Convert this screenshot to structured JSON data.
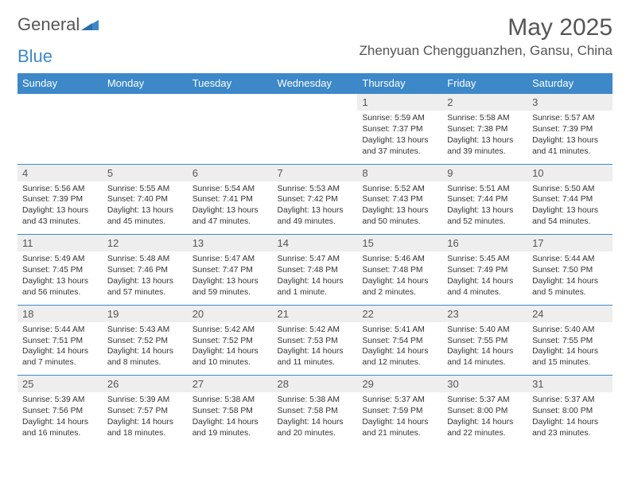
{
  "logo": {
    "text_a": "General",
    "text_b": "Blue"
  },
  "title": "May 2025",
  "location": "Zhenyuan Chengguanzhen, Gansu, China",
  "colors": {
    "header_bg": "#3c88c9",
    "header_text": "#ffffff",
    "daynum_bg": "#eeeeee",
    "text": "#333333",
    "title_text": "#555555",
    "rule": "#3c88c9",
    "background": "#ffffff"
  },
  "typography": {
    "title_fontsize": 30,
    "location_fontsize": 17,
    "header_fontsize": 13,
    "daynum_fontsize": 13,
    "body_fontsize": 10.3
  },
  "day_headers": [
    "Sunday",
    "Monday",
    "Tuesday",
    "Wednesday",
    "Thursday",
    "Friday",
    "Saturday"
  ],
  "weeks": [
    [
      {
        "n": "",
        "sr": "",
        "ss": "",
        "dl": ""
      },
      {
        "n": "",
        "sr": "",
        "ss": "",
        "dl": ""
      },
      {
        "n": "",
        "sr": "",
        "ss": "",
        "dl": ""
      },
      {
        "n": "",
        "sr": "",
        "ss": "",
        "dl": ""
      },
      {
        "n": "1",
        "sr": "Sunrise: 5:59 AM",
        "ss": "Sunset: 7:37 PM",
        "dl": "Daylight: 13 hours and 37 minutes."
      },
      {
        "n": "2",
        "sr": "Sunrise: 5:58 AM",
        "ss": "Sunset: 7:38 PM",
        "dl": "Daylight: 13 hours and 39 minutes."
      },
      {
        "n": "3",
        "sr": "Sunrise: 5:57 AM",
        "ss": "Sunset: 7:39 PM",
        "dl": "Daylight: 13 hours and 41 minutes."
      }
    ],
    [
      {
        "n": "4",
        "sr": "Sunrise: 5:56 AM",
        "ss": "Sunset: 7:39 PM",
        "dl": "Daylight: 13 hours and 43 minutes."
      },
      {
        "n": "5",
        "sr": "Sunrise: 5:55 AM",
        "ss": "Sunset: 7:40 PM",
        "dl": "Daylight: 13 hours and 45 minutes."
      },
      {
        "n": "6",
        "sr": "Sunrise: 5:54 AM",
        "ss": "Sunset: 7:41 PM",
        "dl": "Daylight: 13 hours and 47 minutes."
      },
      {
        "n": "7",
        "sr": "Sunrise: 5:53 AM",
        "ss": "Sunset: 7:42 PM",
        "dl": "Daylight: 13 hours and 49 minutes."
      },
      {
        "n": "8",
        "sr": "Sunrise: 5:52 AM",
        "ss": "Sunset: 7:43 PM",
        "dl": "Daylight: 13 hours and 50 minutes."
      },
      {
        "n": "9",
        "sr": "Sunrise: 5:51 AM",
        "ss": "Sunset: 7:44 PM",
        "dl": "Daylight: 13 hours and 52 minutes."
      },
      {
        "n": "10",
        "sr": "Sunrise: 5:50 AM",
        "ss": "Sunset: 7:44 PM",
        "dl": "Daylight: 13 hours and 54 minutes."
      }
    ],
    [
      {
        "n": "11",
        "sr": "Sunrise: 5:49 AM",
        "ss": "Sunset: 7:45 PM",
        "dl": "Daylight: 13 hours and 56 minutes."
      },
      {
        "n": "12",
        "sr": "Sunrise: 5:48 AM",
        "ss": "Sunset: 7:46 PM",
        "dl": "Daylight: 13 hours and 57 minutes."
      },
      {
        "n": "13",
        "sr": "Sunrise: 5:47 AM",
        "ss": "Sunset: 7:47 PM",
        "dl": "Daylight: 13 hours and 59 minutes."
      },
      {
        "n": "14",
        "sr": "Sunrise: 5:47 AM",
        "ss": "Sunset: 7:48 PM",
        "dl": "Daylight: 14 hours and 1 minute."
      },
      {
        "n": "15",
        "sr": "Sunrise: 5:46 AM",
        "ss": "Sunset: 7:48 PM",
        "dl": "Daylight: 14 hours and 2 minutes."
      },
      {
        "n": "16",
        "sr": "Sunrise: 5:45 AM",
        "ss": "Sunset: 7:49 PM",
        "dl": "Daylight: 14 hours and 4 minutes."
      },
      {
        "n": "17",
        "sr": "Sunrise: 5:44 AM",
        "ss": "Sunset: 7:50 PM",
        "dl": "Daylight: 14 hours and 5 minutes."
      }
    ],
    [
      {
        "n": "18",
        "sr": "Sunrise: 5:44 AM",
        "ss": "Sunset: 7:51 PM",
        "dl": "Daylight: 14 hours and 7 minutes."
      },
      {
        "n": "19",
        "sr": "Sunrise: 5:43 AM",
        "ss": "Sunset: 7:52 PM",
        "dl": "Daylight: 14 hours and 8 minutes."
      },
      {
        "n": "20",
        "sr": "Sunrise: 5:42 AM",
        "ss": "Sunset: 7:52 PM",
        "dl": "Daylight: 14 hours and 10 minutes."
      },
      {
        "n": "21",
        "sr": "Sunrise: 5:42 AM",
        "ss": "Sunset: 7:53 PM",
        "dl": "Daylight: 14 hours and 11 minutes."
      },
      {
        "n": "22",
        "sr": "Sunrise: 5:41 AM",
        "ss": "Sunset: 7:54 PM",
        "dl": "Daylight: 14 hours and 12 minutes."
      },
      {
        "n": "23",
        "sr": "Sunrise: 5:40 AM",
        "ss": "Sunset: 7:55 PM",
        "dl": "Daylight: 14 hours and 14 minutes."
      },
      {
        "n": "24",
        "sr": "Sunrise: 5:40 AM",
        "ss": "Sunset: 7:55 PM",
        "dl": "Daylight: 14 hours and 15 minutes."
      }
    ],
    [
      {
        "n": "25",
        "sr": "Sunrise: 5:39 AM",
        "ss": "Sunset: 7:56 PM",
        "dl": "Daylight: 14 hours and 16 minutes."
      },
      {
        "n": "26",
        "sr": "Sunrise: 5:39 AM",
        "ss": "Sunset: 7:57 PM",
        "dl": "Daylight: 14 hours and 18 minutes."
      },
      {
        "n": "27",
        "sr": "Sunrise: 5:38 AM",
        "ss": "Sunset: 7:58 PM",
        "dl": "Daylight: 14 hours and 19 minutes."
      },
      {
        "n": "28",
        "sr": "Sunrise: 5:38 AM",
        "ss": "Sunset: 7:58 PM",
        "dl": "Daylight: 14 hours and 20 minutes."
      },
      {
        "n": "29",
        "sr": "Sunrise: 5:37 AM",
        "ss": "Sunset: 7:59 PM",
        "dl": "Daylight: 14 hours and 21 minutes."
      },
      {
        "n": "30",
        "sr": "Sunrise: 5:37 AM",
        "ss": "Sunset: 8:00 PM",
        "dl": "Daylight: 14 hours and 22 minutes."
      },
      {
        "n": "31",
        "sr": "Sunrise: 5:37 AM",
        "ss": "Sunset: 8:00 PM",
        "dl": "Daylight: 14 hours and 23 minutes."
      }
    ]
  ]
}
